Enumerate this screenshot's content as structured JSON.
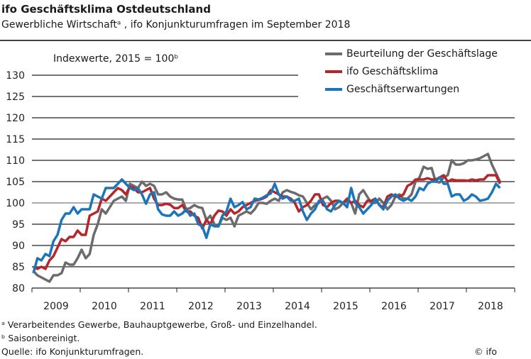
{
  "header": {
    "title": "ifo Geschäftsklima Ostdeutschland",
    "subtitle": "Gewerbliche Wirtschaftᵃ , ifo Konjunkturumfragen im September 2018"
  },
  "chart_data": {
    "type": "line",
    "title": "ifo Geschäftsklima Ostdeutschland",
    "ylabel": "Indexwerte, 2015 = 100ᵇ",
    "xlabel": "",
    "ylim": [
      80,
      130
    ],
    "yticks": [
      "80",
      "85",
      "90",
      "95",
      "100",
      "105",
      "110",
      "115",
      "120",
      "125",
      "130"
    ],
    "xticks": [
      "2009",
      "2010",
      "2011",
      "2012",
      "2013",
      "2014",
      "2015",
      "2016",
      "2017",
      "2018"
    ],
    "x_range": "2009-01 to 2018-09, monthly",
    "grid": true,
    "legend": "top-right",
    "series": [
      {
        "name": "Beurteilung der Geschäftslage",
        "color": "#6b6b6b",
        "values": [
          84,
          83,
          82.5,
          82,
          81.5,
          83,
          83,
          83.5,
          86,
          85.5,
          85.5,
          87,
          89,
          87,
          88,
          92.5,
          95,
          98.5,
          97.5,
          99,
          100.5,
          101,
          101.5,
          100.5,
          104.5,
          104,
          103.5,
          105,
          104,
          104.5,
          104,
          102,
          102,
          102.5,
          101.5,
          101,
          100.8,
          100.8,
          98.5,
          98.8,
          99.5,
          99,
          98.8,
          96,
          97,
          95,
          94.5,
          96.5,
          96,
          96.5,
          94.5,
          97,
          97.5,
          98,
          97.5,
          98.5,
          100,
          100,
          99.8,
          100.5,
          101,
          100.5,
          102.5,
          103,
          102.6,
          102.3,
          101.8,
          101.5,
          100,
          98.5,
          99.5,
          100,
          101,
          101.5,
          100.5,
          98.5,
          99,
          100,
          100.5,
          100,
          97.5,
          102,
          103,
          101.5,
          100,
          100,
          101,
          100,
          98.5,
          99.5,
          101.5,
          102,
          101,
          101,
          102,
          105,
          106,
          108.5,
          108,
          108.2,
          105,
          104.8,
          106,
          106.5,
          110,
          109,
          109,
          109.3,
          110,
          110,
          110.2,
          110.5,
          111,
          111.5,
          109,
          107,
          105
        ]
      },
      {
        "name": "ifo Geschäftsklima",
        "color": "#b5252a",
        "values": [
          85,
          84.5,
          85,
          84.5,
          86.5,
          87.5,
          89.5,
          91.5,
          91,
          92,
          92,
          93.5,
          92.5,
          92.5,
          97,
          97.5,
          98,
          101,
          100.5,
          101.5,
          102.5,
          103.5,
          103,
          102,
          103.8,
          103.5,
          102.5,
          102.5,
          103,
          103.5,
          101,
          99.5,
          99.5,
          99.8,
          99.6,
          98.8,
          98.8,
          99.5,
          98,
          98,
          97,
          96.5,
          94,
          96,
          95,
          97,
          98.2,
          98,
          97,
          98.5,
          97.5,
          98,
          99,
          99.5,
          100,
          100.5,
          100.7,
          101,
          101.5,
          103,
          102.5,
          102,
          101.5,
          101.5,
          101,
          100,
          98,
          99,
          99.5,
          100.5,
          102,
          102,
          99.5,
          99,
          100,
          100.5,
          100.5,
          100,
          101,
          100,
          100.5,
          99.5,
          99,
          100.5,
          100.5,
          101,
          99.5,
          99,
          101.5,
          102,
          101.5,
          101.5,
          102,
          104,
          104.5,
          105.5,
          105.5,
          105.5,
          105.8,
          105.5,
          105.5,
          106,
          106.5,
          105,
          105.5,
          105.3,
          105.3,
          105.3,
          105.2,
          105.5,
          105.3,
          105.5,
          105.5,
          106.5,
          106.5,
          106.5,
          104.5
        ]
      },
      {
        "name": "Geschäftserwartungen",
        "color": "#1b75b8",
        "values": [
          83.5,
          87,
          86.5,
          88,
          87.5,
          91,
          92.5,
          96,
          97.5,
          97.5,
          99,
          97.5,
          98.5,
          98.5,
          98.5,
          102,
          101.5,
          101,
          103.5,
          103.5,
          103.5,
          104.5,
          105.5,
          104.5,
          103.5,
          103,
          103.5,
          102,
          99.8,
          102,
          102.5,
          98.5,
          97.3,
          97,
          97,
          98,
          97,
          97.5,
          98.5,
          97,
          97.5,
          95,
          94.5,
          91.8,
          95,
          94.5,
          94.5,
          97,
          98,
          101,
          99,
          99.5,
          100.2,
          98.5,
          99,
          101,
          100.8,
          101.2,
          101.8,
          102.2,
          104.5,
          102,
          101,
          101.5,
          100.5,
          100.5,
          101,
          98,
          96,
          97.5,
          98.5,
          100.5,
          100.5,
          98.5,
          98,
          99.5,
          100.5,
          100,
          99,
          103.5,
          100,
          99,
          97.5,
          98.5,
          99.5,
          101,
          99.5,
          98.5,
          100.5,
          101.5,
          102,
          101,
          100.5,
          101,
          100.5,
          101.5,
          103.5,
          103,
          104.5,
          105,
          105,
          106,
          104.5,
          104.5,
          101.5,
          102,
          102,
          100.5,
          101,
          102,
          101.5,
          100.5,
          100.7,
          101,
          102.5,
          104.5,
          103.5
        ]
      }
    ]
  },
  "footnotes": [
    "ᵃ Verarbeitendes Gewerbe, Bauhauptgewerbe, Groß- und Einzelhandel.",
    "ᵇ Saisonbereinigt.",
    "Quelle: ifo Konjunkturumfragen."
  ],
  "credit": "© ifo Institut"
}
